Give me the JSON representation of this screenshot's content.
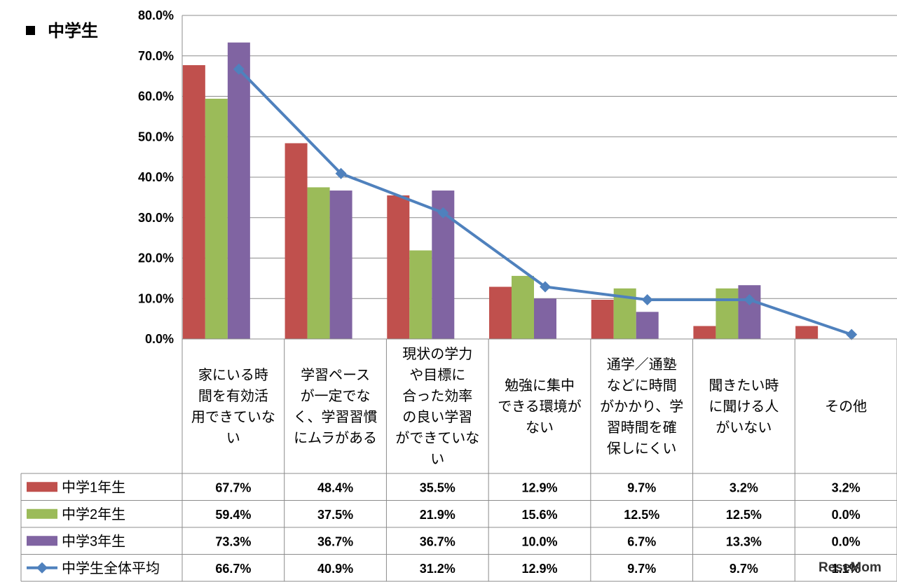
{
  "chart_data": {
    "type": "bar",
    "title": "中学生",
    "y_ticks": [
      "0.0%",
      "10.0%",
      "20.0%",
      "30.0%",
      "40.0%",
      "50.0%",
      "60.0%",
      "70.0%",
      "80.0%"
    ],
    "ylim": [
      0,
      80
    ],
    "grid": true,
    "categories": [
      [
        "家にいる時",
        "間を有効活",
        "用できていな",
        "い"
      ],
      [
        "学習ペース",
        "が一定でな",
        "く、学習習慣",
        "にムラがある"
      ],
      [
        "現状の学力",
        "や目標に",
        "合った効率",
        "の良い学習",
        "ができていな",
        "い"
      ],
      [
        "勉強に集中",
        "できる環境が",
        "ない"
      ],
      [
        "通学／通塾",
        "などに時間",
        "がかかり、学",
        "習時間を確",
        "保しにくい"
      ],
      [
        "聞きたい時",
        "に聞ける人",
        "がいない"
      ],
      [
        "その他"
      ]
    ],
    "series": [
      {
        "name": "中学1年生",
        "kind": "bar",
        "color": "#c0504d",
        "values": [
          67.7,
          48.4,
          35.5,
          12.9,
          9.7,
          3.2,
          3.2
        ],
        "labels": [
          "67.7%",
          "48.4%",
          "35.5%",
          "12.9%",
          "9.7%",
          "3.2%",
          "3.2%"
        ]
      },
      {
        "name": "中学2年生",
        "kind": "bar",
        "color": "#9bbb59",
        "values": [
          59.4,
          37.5,
          21.9,
          15.6,
          12.5,
          12.5,
          0.0
        ],
        "labels": [
          "59.4%",
          "37.5%",
          "21.9%",
          "15.6%",
          "12.5%",
          "12.5%",
          "0.0%"
        ]
      },
      {
        "name": "中学3年生",
        "kind": "bar",
        "color": "#8064a2",
        "values": [
          73.3,
          36.7,
          36.7,
          10.0,
          6.7,
          13.3,
          0.0
        ],
        "labels": [
          "73.3%",
          "36.7%",
          "36.7%",
          "10.0%",
          "6.7%",
          "13.3%",
          "0.0%"
        ]
      },
      {
        "name": "中学生全体平均",
        "kind": "line",
        "color": "#4f81bd",
        "values": [
          66.7,
          40.9,
          31.2,
          12.9,
          9.7,
          9.7,
          1.1
        ],
        "labels": [
          "66.7%",
          "40.9%",
          "31.2%",
          "12.9%",
          "9.7%",
          "9.7%",
          "1.1%"
        ]
      }
    ]
  },
  "watermark": "ReseMom"
}
